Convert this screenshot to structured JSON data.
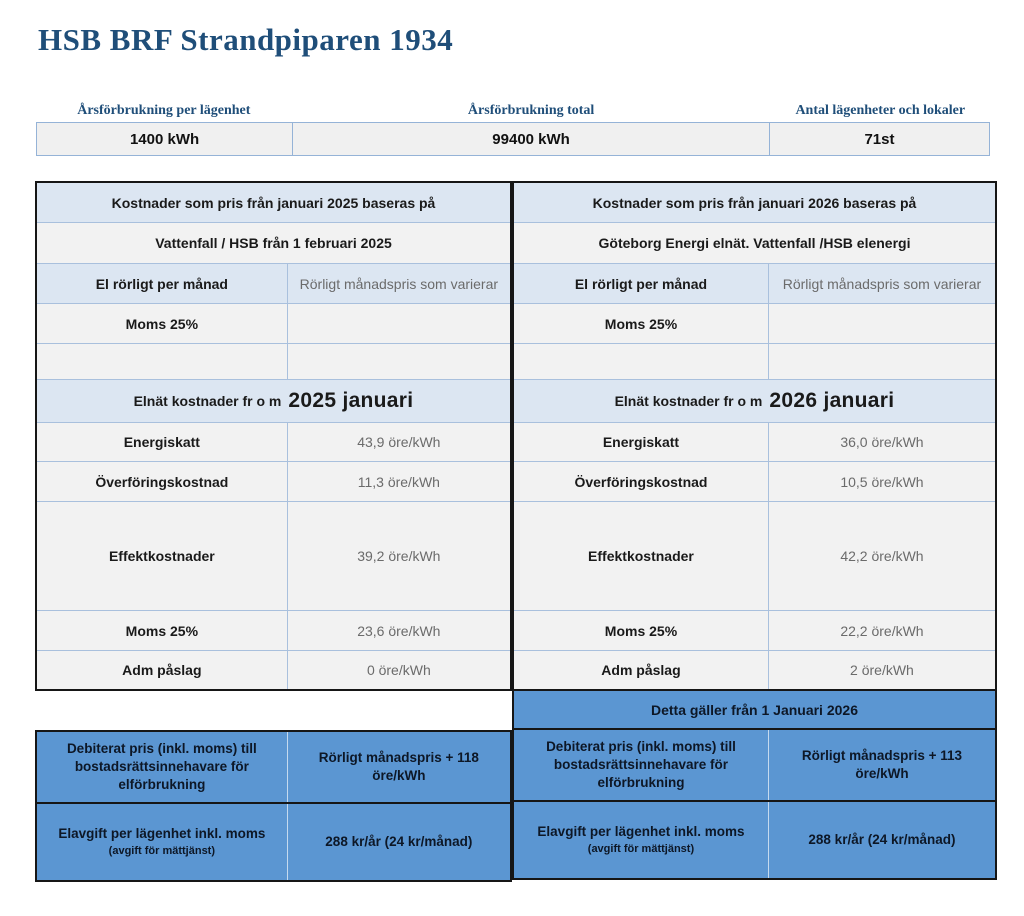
{
  "title": "HSB BRF Strandpiparen 1934",
  "summary": {
    "items": [
      {
        "label": "Årsförbrukning per lägenhet",
        "value": "1400 kWh"
      },
      {
        "label": "Årsförbrukning total",
        "value": "99400 kWh"
      },
      {
        "label": "Antal lägenheter och lokaler",
        "value": "71st"
      }
    ]
  },
  "left": {
    "header": "Kostnader som pris från januari 2025 baseras på",
    "supplier": "Vattenfall / HSB från 1 februari 2025",
    "variable_label": "El rörligt per månad",
    "variable_value": "Rörligt månadspris som varierar",
    "moms_label": "Moms 25%",
    "grid_header_prefix": "Elnät kostnader fr o m",
    "grid_header_period": "2025 januari",
    "cost_rows": [
      {
        "label": "Energiskatt",
        "value": "43,9 öre/kWh"
      },
      {
        "label": "Överföringskostnad",
        "value": "11,3 öre/kWh"
      },
      {
        "label": "Effektkostnader",
        "value": "39,2 öre/kWh"
      },
      {
        "label": "Moms 25%",
        "value": "23,6 öre/kWh"
      },
      {
        "label": "Adm påslag",
        "value": "0 öre/kWh"
      }
    ],
    "billed_label": "Debiterat pris (inkl. moms) till bostadsrättsinnehavare för elförbrukning",
    "billed_value": "Rörligt månadspris +  118 öre/kWh",
    "fee_label": "Elavgift per lägenhet inkl. moms",
    "fee_note": "(avgift för mättjänst)",
    "fee_value": "288 kr/år (24 kr/månad)"
  },
  "right": {
    "header": "Kostnader som pris från januari  2026 baseras på",
    "supplier": "Göteborg Energi  elnät. Vattenfall /HSB  elenergi",
    "variable_label": "El rörligt per månad",
    "variable_value": "Rörligt månadspris som varierar",
    "moms_label": "Moms 25%",
    "grid_header_prefix": "Elnät kostnader fr o m",
    "grid_header_period": "2026 januari",
    "cost_rows": [
      {
        "label": "Energiskatt",
        "value": "36,0 öre/kWh"
      },
      {
        "label": "Överföringskostnad",
        "value": "10,5 öre/kWh"
      },
      {
        "label": "Effektkostnader",
        "value": "42,2 öre/kWh"
      },
      {
        "label": "Moms 25%",
        "value": "22,2 öre/kWh"
      },
      {
        "label": "Adm påslag",
        "value": "2 öre/kWh"
      }
    ],
    "notice": "Detta gäller från 1 Januari  2026",
    "billed_label": "Debiterat pris (inkl. moms) till bostadsrättsinnehavare för elförbrukning",
    "billed_value": "Rörligt månadspris +  113 öre/kWh",
    "fee_label": "Elavgift per lägenhet inkl. moms",
    "fee_note": "(avgift för mättjänst)",
    "fee_value": "288 kr/år (24 kr/månad)"
  },
  "colors": {
    "navy": "#1f4e79",
    "band_blue": "#dce6f2",
    "row_gray": "#f2f2f2",
    "accent_blue": "#5b96d2",
    "value_gray": "#6b6b6b"
  }
}
